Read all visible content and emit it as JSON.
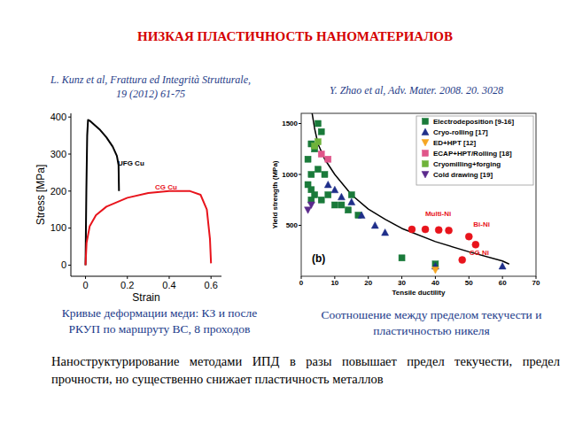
{
  "header": {
    "title": "НИЗКАЯ ПЛАСТИЧНОСТЬ НАНОМАТЕРИАЛОВ"
  },
  "footer": {
    "text": "Наноструктурирование методами ИПД в разы повышает предел текучести, предел прочности, но существенно снижает пластичность металлов"
  },
  "chart_data": [
    {
      "type": "line",
      "title": "Кривые деформации меди: КЗ и после\nРКУП по маршруту BC, 8 проходов",
      "subtitle": "L. Kunz et al, Frattura ed Integrità Strutturale,\n19 (2012) 61-75",
      "xlabel": "Strain",
      "ylabel": "Stress [MPa]",
      "xlim": [
        -0.07,
        0.65
      ],
      "ylim": [
        -30,
        410
      ],
      "xticks": [
        0,
        0.2,
        0.4,
        0.6
      ],
      "yticks": [
        0,
        100,
        200,
        300,
        400
      ],
      "grid": false,
      "series": [
        {
          "name": "UFG Cu",
          "color": "#000000",
          "x": [
            0,
            0.004,
            0.008,
            0.012,
            0.02,
            0.04,
            0.07,
            0.1,
            0.13,
            0.15,
            0.158,
            0.16
          ],
          "values": [
            0,
            200,
            350,
            392,
            390,
            380,
            365,
            345,
            320,
            295,
            270,
            200
          ]
        },
        {
          "name": "CG Cu",
          "color": "#e8141c",
          "x": [
            0,
            0.005,
            0.02,
            0.05,
            0.1,
            0.2,
            0.3,
            0.4,
            0.5,
            0.55,
            0.58,
            0.595,
            0.6
          ],
          "values": [
            0,
            60,
            105,
            135,
            158,
            182,
            195,
            200,
            200,
            190,
            150,
            70,
            5
          ]
        }
      ]
    },
    {
      "type": "scatter",
      "title": "Соотношение между пределом текучести и\nпластичностью никеля",
      "subtitle": "Y. Zhao et al, Adv. Mater. 2008. 20. 3028",
      "xlabel": "Tensile ductility",
      "ylabel": "Yield strength (MPa)",
      "panel_label": "(b)",
      "xlim": [
        0,
        70
      ],
      "ylim": [
        0,
        1600
      ],
      "xticks": [
        0,
        10,
        20,
        30,
        40,
        50,
        60,
        70
      ],
      "yticks": [
        500,
        1000,
        1500
      ],
      "grid": false,
      "legend": "upper right",
      "series": [
        {
          "name": "Electrodeposition [9-16]",
          "color": "#1a7a3a",
          "marker": "square",
          "x": [
            5,
            6,
            3,
            4,
            2,
            3,
            5,
            7,
            2,
            3,
            4,
            6,
            8,
            10,
            12,
            14,
            15,
            17,
            3,
            30,
            40
          ],
          "values": [
            1500,
            1420,
            1300,
            1250,
            1150,
            1000,
            1050,
            1000,
            900,
            850,
            800,
            750,
            800,
            700,
            700,
            650,
            800,
            600,
            750,
            180,
            120
          ]
        },
        {
          "name": "Cryo-rolling [17]",
          "color": "#1f2f8a",
          "marker": "triangle",
          "x": [
            8,
            10,
            12,
            15,
            18,
            22,
            25,
            40,
            60
          ],
          "values": [
            900,
            850,
            780,
            730,
            600,
            500,
            430,
            100,
            100
          ]
        },
        {
          "name": "ED+HPT [12]",
          "color": "#f5a623",
          "marker": "triangle-down",
          "x": [
            40
          ],
          "values": [
            60
          ]
        },
        {
          "name": "ECAP+HPT/Rolling [18]",
          "color": "#e0558a",
          "marker": "square",
          "x": [
            6,
            8
          ],
          "values": [
            1200,
            1150
          ]
        },
        {
          "name": "Cryomilling+forging",
          "color": "#6fb33a",
          "marker": "square",
          "x": [
            4,
            5
          ],
          "values": [
            1280,
            1320
          ]
        },
        {
          "name": "Cold drawing [19]",
          "color": "#5b2a8c",
          "marker": "triangle-down",
          "x": [
            2,
            3
          ],
          "values": [
            650,
            700
          ]
        }
      ],
      "labeled_groups": [
        {
          "name": "Multi-Ni",
          "color": "#e8141c",
          "marker": "circle",
          "x": [
            33,
            37,
            41,
            44
          ],
          "values": [
            460,
            460,
            455,
            450
          ]
        },
        {
          "name": "Bi-Ni",
          "color": "#e8141c",
          "marker": "circle",
          "x": [
            50,
            52
          ],
          "values": [
            390,
            310
          ]
        },
        {
          "name": "CG Ni",
          "color": "#e8141c",
          "marker": "circle",
          "x": [
            48
          ],
          "values": [
            160
          ]
        }
      ],
      "trend": {
        "color": "#000000",
        "x": [
          3,
          4,
          5,
          7,
          10,
          15,
          20,
          25,
          30,
          40,
          50,
          60,
          62
        ],
        "values": [
          1650,
          1450,
          1300,
          1150,
          1000,
          800,
          660,
          560,
          470,
          340,
          240,
          150,
          120
        ]
      }
    }
  ]
}
